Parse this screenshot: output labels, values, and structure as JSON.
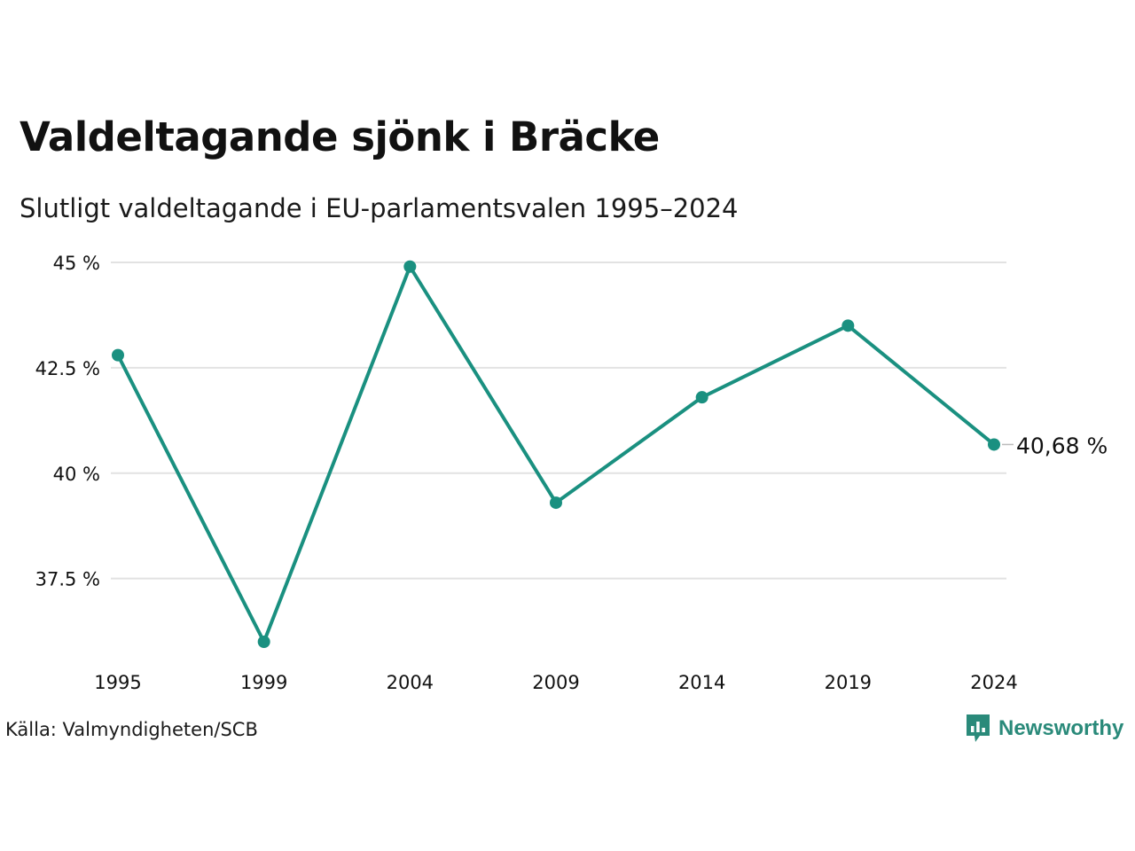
{
  "header": {
    "title": "Valdeltagande sjönk i Bräcke",
    "subtitle": "Slutligt valdeltagande i EU-parlamentsvalen 1995–2024"
  },
  "footer": {
    "source": "Källa: Valmyndigheten/SCB",
    "brand": "Newsworthy",
    "brand_icon": "newsworthy-logo-icon"
  },
  "colors": {
    "line": "#1a9080",
    "grid": "#e2e2e2",
    "text": "#111111",
    "brand": "#2a8a7a"
  },
  "chart_data": {
    "type": "line",
    "title": "Valdeltagande sjönk i Bräcke",
    "subtitle": "Slutligt valdeltagande i EU-parlamentsvalen 1995–2024",
    "xlabel": "",
    "ylabel": "",
    "x": [
      "1995",
      "1999",
      "2004",
      "2009",
      "2014",
      "2019",
      "2024"
    ],
    "series": [
      {
        "values": [
          42.8,
          36.0,
          44.9,
          39.3,
          41.8,
          43.5,
          40.68
        ]
      }
    ],
    "ylim": [
      36,
      45
    ],
    "yticks": [
      37.5,
      40,
      42.5,
      45
    ],
    "ytick_labels": [
      "37.5 %",
      "40 %",
      "42.5 %",
      "45 %"
    ],
    "end_label": "40,68 %",
    "grid": true,
    "legend": "none"
  }
}
